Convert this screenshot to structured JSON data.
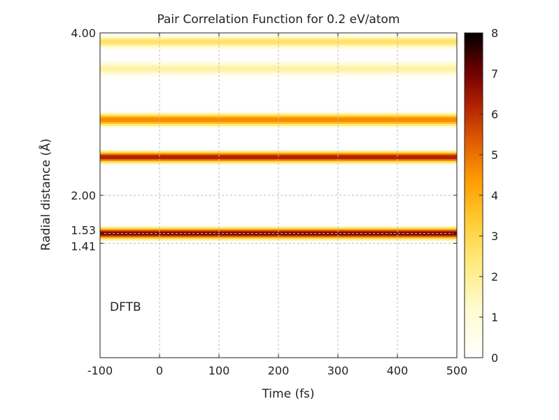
{
  "chart_data": {
    "type": "heatmap",
    "title": "Pair Correlation Function for 0.2 eV/atom",
    "xlabel": "Time (fs)",
    "ylabel": "Radial distance (Å)",
    "annotation": "DFTB",
    "xlim": [
      -100,
      500
    ],
    "ylim": [
      0.0,
      4.0
    ],
    "x_ticks": [
      "-100",
      "0",
      "100",
      "200",
      "300",
      "400",
      "500"
    ],
    "x_tick_values": [
      -100,
      0,
      100,
      200,
      300,
      400,
      500
    ],
    "y_ticks": [
      "1.41",
      "1.53",
      "2.00",
      "4.00"
    ],
    "y_tick_values": [
      1.41,
      1.53,
      2.0,
      4.0
    ],
    "grid": true,
    "colorbar": {
      "min": 0,
      "max": 8,
      "ticks": [
        "0",
        "1",
        "2",
        "3",
        "4",
        "5",
        "6",
        "7",
        "8"
      ],
      "tick_values": [
        0,
        1,
        2,
        3,
        4,
        5,
        6,
        7,
        8
      ],
      "colormap": "afmhot_r"
    },
    "bands": [
      {
        "r": 1.53,
        "halfwidth": 0.045,
        "value": 6.8
      },
      {
        "r": 2.47,
        "halfwidth": 0.045,
        "value": 6.2
      },
      {
        "r": 2.93,
        "halfwidth": 0.05,
        "value": 4.6
      },
      {
        "r": 3.56,
        "halfwidth": 0.05,
        "value": 1.8
      },
      {
        "r": 3.89,
        "halfwidth": 0.045,
        "value": 2.6
      }
    ]
  }
}
